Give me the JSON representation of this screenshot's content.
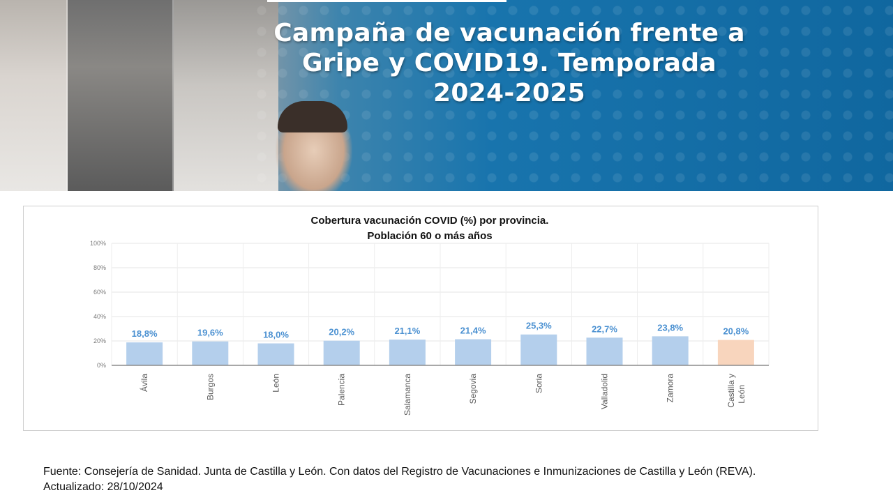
{
  "banner": {
    "title_line1": "Campaña de vacunación frente a",
    "title_line2": "Gripe y COVID19. Temporada",
    "title_line3": "2024-2025"
  },
  "chart_data": {
    "type": "bar",
    "title": "Cobertura vacunación COVID (%) por provincia.",
    "subtitle": "Población 60 o más años",
    "categories": [
      "Ávila",
      "Burgos",
      "León",
      "Palencia",
      "Salamanca",
      "Segovia",
      "Soria",
      "Valladolid",
      "Zamora",
      "Castilla y León"
    ],
    "values": [
      18.8,
      19.6,
      18.0,
      20.2,
      21.1,
      21.4,
      25.3,
      22.7,
      23.8,
      20.8
    ],
    "data_labels": [
      "18,8%",
      "19,6%",
      "18,0%",
      "20,2%",
      "21,1%",
      "21,4%",
      "25,3%",
      "22,7%",
      "23,8%",
      "20,8%"
    ],
    "y_ticks": [
      "0%",
      "20%",
      "40%",
      "60%",
      "80%",
      "100%"
    ],
    "ylim": [
      0,
      100
    ],
    "grid": true,
    "colors": {
      "default": "#b4cfec",
      "highlight": "#f8d5bd",
      "label": "#4a90d1"
    },
    "highlight_category": "Castilla y León"
  },
  "footer": {
    "source": "Fuente: Consejería de Sanidad. Junta de Castilla y León. Con datos del Registro de Vacunaciones e Inmunizaciones  de Castilla y León (REVA).",
    "updated": "Actualizado: 28/10/2024"
  }
}
